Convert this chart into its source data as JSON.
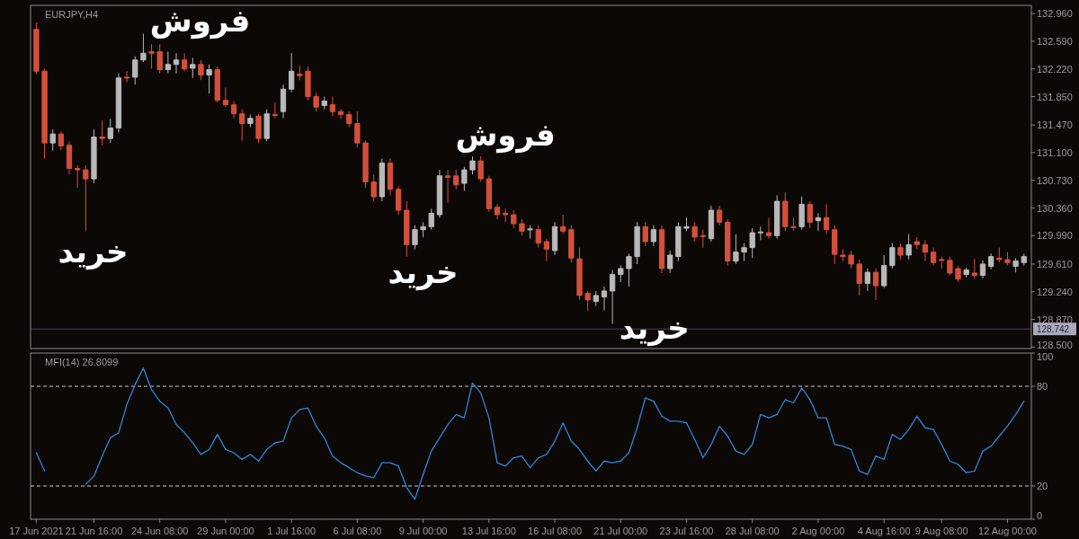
{
  "chart_data": [
    {
      "type": "candlestick",
      "title": "EURJPY,H4",
      "categories": [
        null,
        null,
        null,
        null,
        null,
        null,
        null,
        null,
        null,
        null,
        null,
        null,
        null,
        null,
        null,
        null,
        null,
        null,
        null,
        null,
        null,
        null,
        null,
        null,
        null,
        null,
        null,
        null,
        null,
        null,
        null,
        null,
        null,
        null,
        null,
        null,
        null,
        null,
        null,
        null,
        null,
        null,
        null,
        null,
        null,
        null,
        null,
        null,
        null,
        null,
        null,
        null,
        null,
        null,
        null,
        null,
        null,
        null,
        null,
        null,
        null,
        null,
        null,
        null,
        null,
        null,
        null,
        null,
        null,
        null,
        null,
        null,
        null,
        null,
        null,
        null,
        null,
        null,
        null,
        null,
        null,
        null,
        null,
        null,
        null,
        null,
        null,
        null,
        null,
        null,
        null,
        null,
        null,
        null,
        null,
        null,
        null,
        null,
        null,
        null,
        null,
        null,
        null,
        null,
        null,
        null,
        null,
        null,
        null,
        null,
        null,
        null,
        null,
        null,
        null,
        null,
        null,
        null,
        null,
        null,
        null
      ],
      "ohlc": [
        [
          132.75,
          132.84,
          132.15,
          132.19
        ],
        [
          132.19,
          132.22,
          131.02,
          131.23
        ],
        [
          131.23,
          131.41,
          131.13,
          131.35
        ],
        [
          131.35,
          131.38,
          131.13,
          131.19
        ],
        [
          131.2,
          131.25,
          130.81,
          130.89
        ],
        [
          130.89,
          130.93,
          130.63,
          130.87
        ],
        [
          130.87,
          130.93,
          130.05,
          130.75
        ],
        [
          130.75,
          131.41,
          130.69,
          131.31
        ],
        [
          131.31,
          131.53,
          131.2,
          131.29
        ],
        [
          131.29,
          131.55,
          131.23,
          131.43
        ],
        [
          131.43,
          132.16,
          131.37,
          132.1
        ],
        [
          132.11,
          132.19,
          132.04,
          132.1
        ],
        [
          132.11,
          132.39,
          132.01,
          132.34
        ],
        [
          132.34,
          132.69,
          132.31,
          132.43
        ],
        [
          132.45,
          132.55,
          132.22,
          132.43
        ],
        [
          132.45,
          132.55,
          132.16,
          132.21
        ],
        [
          132.21,
          132.45,
          132.16,
          132.28
        ],
        [
          132.28,
          132.43,
          132.16,
          132.34
        ],
        [
          132.34,
          132.43,
          132.19,
          132.22
        ],
        [
          132.23,
          132.37,
          132.1,
          132.28
        ],
        [
          132.28,
          132.34,
          132.07,
          132.14
        ],
        [
          132.14,
          132.28,
          131.89,
          132.21
        ],
        [
          132.21,
          132.25,
          131.77,
          131.8
        ],
        [
          131.8,
          131.97,
          131.71,
          131.74
        ],
        [
          131.74,
          131.79,
          131.56,
          131.62
        ],
        [
          131.62,
          131.68,
          131.26,
          131.49
        ],
        [
          131.49,
          131.61,
          131.44,
          131.56
        ],
        [
          131.59,
          131.62,
          131.23,
          131.29
        ],
        [
          131.29,
          131.68,
          131.25,
          131.62
        ],
        [
          131.61,
          131.77,
          131.56,
          131.6
        ],
        [
          131.65,
          132.01,
          131.56,
          131.95
        ],
        [
          131.95,
          132.43,
          131.91,
          132.19
        ],
        [
          132.15,
          132.26,
          132.07,
          132.13
        ],
        [
          132.19,
          132.25,
          131.8,
          131.85
        ],
        [
          131.85,
          131.9,
          131.65,
          131.71
        ],
        [
          131.73,
          131.85,
          131.68,
          131.79
        ],
        [
          131.74,
          131.85,
          131.59,
          131.65
        ],
        [
          131.65,
          131.68,
          131.55,
          131.61
        ],
        [
          131.61,
          131.65,
          131.44,
          131.49
        ],
        [
          131.49,
          131.65,
          131.17,
          131.23
        ],
        [
          131.23,
          131.26,
          130.63,
          130.71
        ],
        [
          130.71,
          130.81,
          130.45,
          130.51
        ],
        [
          130.51,
          131.02,
          130.45,
          130.96
        ],
        [
          130.96,
          131.02,
          130.53,
          130.61
        ],
        [
          130.61,
          130.65,
          130.27,
          130.33
        ],
        [
          130.33,
          130.45,
          129.71,
          129.87
        ],
        [
          129.87,
          130.13,
          129.81,
          130.07
        ],
        [
          130.07,
          130.17,
          129.97,
          130.11
        ],
        [
          130.11,
          130.35,
          130.07,
          130.29
        ],
        [
          130.27,
          130.87,
          130.23,
          130.79
        ],
        [
          130.79,
          130.87,
          130.43,
          130.77
        ],
        [
          130.79,
          130.87,
          130.61,
          130.67
        ],
        [
          130.69,
          130.91,
          130.59,
          130.87
        ],
        [
          130.87,
          131.05,
          130.81,
          130.99
        ],
        [
          130.99,
          131.05,
          130.71,
          130.75
        ],
        [
          130.75,
          130.79,
          130.31,
          130.35
        ],
        [
          130.37,
          130.41,
          130.21,
          130.27
        ],
        [
          130.29,
          130.35,
          130.17,
          130.27
        ],
        [
          130.27,
          130.33,
          130.09,
          130.15
        ],
        [
          130.15,
          130.21,
          129.99,
          130.05
        ],
        [
          130.07,
          130.13,
          129.95,
          130.08
        ],
        [
          130.07,
          130.13,
          129.83,
          129.89
        ],
        [
          129.91,
          129.95,
          129.65,
          129.81
        ],
        [
          129.79,
          130.17,
          129.73,
          130.11
        ],
        [
          130.11,
          130.27,
          130.01,
          130.05
        ],
        [
          130.07,
          130.13,
          129.63,
          129.69
        ],
        [
          129.68,
          129.83,
          129.13,
          129.19
        ],
        [
          129.22,
          129.25,
          128.98,
          129.13
        ],
        [
          129.11,
          129.25,
          129.05,
          129.19
        ],
        [
          129.17,
          129.31,
          128.99,
          129.25
        ],
        [
          129.25,
          129.53,
          128.81,
          129.47
        ],
        [
          129.47,
          129.59,
          129.37,
          129.55
        ],
        [
          129.55,
          129.75,
          129.31,
          129.71
        ],
        [
          129.71,
          130.17,
          129.61,
          130.11
        ],
        [
          130.11,
          130.17,
          129.85,
          129.91
        ],
        [
          129.91,
          130.13,
          129.85,
          130.07
        ],
        [
          130.07,
          130.13,
          129.49,
          129.55
        ],
        [
          129.55,
          129.79,
          129.49,
          129.73
        ],
        [
          129.71,
          130.17,
          129.65,
          130.11
        ],
        [
          130.09,
          130.23,
          130.05,
          130.11
        ],
        [
          130.11,
          130.17,
          129.91,
          129.97
        ],
        [
          129.99,
          130.07,
          129.83,
          129.98
        ],
        [
          129.95,
          130.39,
          129.91,
          130.33
        ],
        [
          130.33,
          130.39,
          130.13,
          130.17
        ],
        [
          130.17,
          130.21,
          129.59,
          129.65
        ],
        [
          129.65,
          130.01,
          129.61,
          129.77
        ],
        [
          129.77,
          129.89,
          129.65,
          129.83
        ],
        [
          129.83,
          130.09,
          129.69,
          130.03
        ],
        [
          130.03,
          130.11,
          129.93,
          130.04
        ],
        [
          130.03,
          130.23,
          129.95,
          129.99
        ],
        [
          129.99,
          130.53,
          129.95,
          130.45
        ],
        [
          130.45,
          130.57,
          130.05,
          130.11
        ],
        [
          130.11,
          130.23,
          130.05,
          130.1
        ],
        [
          130.11,
          130.51,
          130.07,
          130.41
        ],
        [
          130.41,
          130.45,
          130.09,
          130.17
        ],
        [
          130.19,
          130.29,
          130.05,
          130.23
        ],
        [
          130.23,
          130.41,
          130.01,
          130.07
        ],
        [
          130.07,
          130.13,
          129.61,
          129.74
        ],
        [
          129.73,
          129.81,
          129.65,
          129.71
        ],
        [
          129.73,
          129.79,
          129.55,
          129.61
        ],
        [
          129.61,
          129.67,
          129.19,
          129.35
        ],
        [
          129.35,
          129.55,
          129.25,
          129.5
        ],
        [
          129.5,
          129.55,
          129.13,
          129.32
        ],
        [
          129.32,
          129.73,
          129.29,
          129.59
        ],
        [
          129.59,
          129.89,
          129.55,
          129.83
        ],
        [
          129.83,
          129.89,
          129.67,
          129.73
        ],
        [
          129.73,
          130.01,
          129.67,
          129.87
        ],
        [
          129.91,
          129.97,
          129.81,
          129.87
        ],
        [
          129.87,
          129.93,
          129.65,
          129.77
        ],
        [
          129.77,
          129.83,
          129.59,
          129.63
        ],
        [
          129.67,
          129.71,
          129.55,
          129.66
        ],
        [
          129.66,
          129.71,
          129.46,
          129.49
        ],
        [
          129.55,
          129.59,
          129.37,
          129.41
        ],
        [
          129.47,
          129.56,
          129.43,
          129.53
        ],
        [
          129.49,
          129.68,
          129.41,
          129.46
        ],
        [
          129.46,
          129.66,
          129.42,
          129.61
        ],
        [
          129.58,
          129.75,
          129.54,
          129.71
        ],
        [
          129.69,
          129.83,
          129.63,
          129.67
        ],
        [
          129.67,
          129.77,
          129.59,
          129.63
        ],
        [
          129.58,
          129.69,
          129.5,
          129.65
        ],
        [
          129.63,
          129.75,
          129.59,
          129.71
        ]
      ],
      "colors": [
        "#d4503c",
        "#d4503c",
        "#b9b9b9",
        "#d4503c",
        "#d4503c",
        "#d4503c",
        "#d4503c",
        "#b9b9b9",
        "#d4503c",
        "#b9b9b9",
        "#b9b9b9",
        "#d4503c",
        "#b9b9b9",
        "#b9b9b9",
        "#d4503c",
        "#d4503c",
        "#b9b9b9",
        "#b9b9b9",
        "#d4503c",
        "#b9b9b9",
        "#d4503c",
        "#b9b9b9",
        "#d4503c",
        "#d4503c",
        "#d4503c",
        "#d4503c",
        "#b9b9b9",
        "#d4503c",
        "#b9b9b9",
        "#d4503c",
        "#b9b9b9",
        "#b9b9b9",
        "#d4503c",
        "#d4503c",
        "#d4503c",
        "#b9b9b9",
        "#d4503c",
        "#d4503c",
        "#d4503c",
        "#d4503c",
        "#d4503c",
        "#d4503c",
        "#b9b9b9",
        "#d4503c",
        "#d4503c",
        "#d4503c",
        "#b9b9b9",
        "#b9b9b9",
        "#b9b9b9",
        "#b9b9b9",
        "#d4503c",
        "#d4503c",
        "#b9b9b9",
        "#b9b9b9",
        "#d4503c",
        "#d4503c",
        "#d4503c",
        "#d4503c",
        "#d4503c",
        "#d4503c",
        "#b9b9b9",
        "#d4503c",
        "#d4503c",
        "#b9b9b9",
        "#d4503c",
        "#d4503c",
        "#d4503c",
        "#d4503c",
        "#b9b9b9",
        "#b9b9b9",
        "#b9b9b9",
        "#b9b9b9",
        "#b9b9b9",
        "#b9b9b9",
        "#d4503c",
        "#b9b9b9",
        "#d4503c",
        "#b9b9b9",
        "#b9b9b9",
        "#b9b9b9",
        "#d4503c",
        "#d4503c",
        "#b9b9b9",
        "#d4503c",
        "#d4503c",
        "#b9b9b9",
        "#b9b9b9",
        "#b9b9b9",
        "#b9b9b9",
        "#d4503c",
        "#b9b9b9",
        "#d4503c",
        "#d4503c",
        "#b9b9b9",
        "#d4503c",
        "#b9b9b9",
        "#d4503c",
        "#d4503c",
        "#d4503c",
        "#d4503c",
        "#d4503c",
        "#b9b9b9",
        "#d4503c",
        "#b9b9b9",
        "#b9b9b9",
        "#d4503c",
        "#b9b9b9",
        "#d4503c",
        "#d4503c",
        "#d4503c",
        "#d4503c",
        "#d4503c",
        "#d4503c",
        "#b9b9b9",
        "#d4503c",
        "#b9b9b9",
        "#b9b9b9",
        "#d4503c",
        "#d4503c",
        "#b9b9b9",
        "#b9b9b9"
      ],
      "ylim": [
        128.48,
        133.07
      ],
      "yticks": [
        {
          "value": 132.96,
          "label": "132.960"
        },
        {
          "value": 132.59,
          "label": "132.590"
        },
        {
          "value": 132.22,
          "label": "132.220"
        },
        {
          "value": 131.85,
          "label": "131.850"
        },
        {
          "value": 131.47,
          "label": "131.470"
        },
        {
          "value": 131.1,
          "label": "131.100"
        },
        {
          "value": 130.73,
          "label": "130.730"
        },
        {
          "value": 130.36,
          "label": "130.360"
        },
        {
          "value": 129.99,
          "label": "129.990"
        },
        {
          "value": 129.61,
          "label": "129.610"
        },
        {
          "value": 129.24,
          "label": "129.240"
        },
        {
          "value": 128.87,
          "label": "128.870"
        },
        {
          "value": 128.5,
          "label": "128.500"
        }
      ],
      "ref_lines": [
        {
          "axis": "y",
          "value": 128.742,
          "label": "128.742",
          "color": "#44445a"
        }
      ],
      "annotations": [
        "فروش",
        "خرید",
        "فروش",
        "خرید",
        "خرید"
      ]
    },
    {
      "type": "line",
      "title": "MFI(14) 26.8099",
      "categories": [
        "17 Jun 2021",
        null,
        null,
        null,
        null,
        null,
        null,
        "21 Jun 16:00",
        null,
        null,
        null,
        null,
        null,
        null,
        null,
        "24 Jun 08:00",
        null,
        null,
        null,
        null,
        null,
        null,
        null,
        "29 Jun 00:00",
        null,
        null,
        null,
        null,
        null,
        null,
        null,
        "1 Jul 16:00",
        null,
        null,
        null,
        null,
        null,
        null,
        null,
        "6 Jul 08:00",
        null,
        null,
        null,
        null,
        null,
        null,
        null,
        "9 Jul 00:00",
        null,
        null,
        null,
        null,
        null,
        null,
        null,
        "13 Jul 16:00",
        null,
        null,
        null,
        null,
        null,
        null,
        null,
        "16 Jul 08:00",
        null,
        null,
        null,
        null,
        null,
        null,
        null,
        "21 Jul 00:00",
        null,
        null,
        null,
        null,
        null,
        null,
        null,
        "23 Jul 16:00",
        null,
        null,
        null,
        null,
        null,
        null,
        null,
        "28 Jul 08:00",
        null,
        null,
        null,
        null,
        null,
        null,
        null,
        "2 Aug 00:00",
        null,
        null,
        null,
        null,
        null,
        null,
        null,
        "4 Aug 16:00",
        null,
        null,
        null,
        null,
        null,
        null,
        "9 Aug 08:00",
        null,
        null,
        null,
        null,
        null,
        null,
        null,
        "12 Aug 00:00",
        null,
        null
      ],
      "series": [
        {
          "color": "#2f86d8",
          "values": [
            40,
            29,
            null,
            null,
            null,
            null,
            21,
            26,
            38,
            49,
            52,
            69,
            81,
            91,
            78,
            71,
            67,
            57,
            52,
            46,
            39,
            42,
            51,
            42,
            40,
            36,
            39,
            35,
            42,
            46,
            47,
            61,
            66,
            67,
            56,
            49,
            38,
            34,
            31,
            28,
            26,
            25,
            34,
            34,
            32,
            19,
            12,
            27,
            41,
            49,
            57,
            63,
            61,
            82,
            76,
            61,
            34,
            32,
            37,
            38,
            31,
            37,
            39,
            47,
            58,
            47,
            42,
            35,
            29,
            35,
            34,
            35,
            40,
            55,
            73,
            71,
            62,
            59,
            59,
            58,
            48,
            37,
            45,
            56,
            50,
            41,
            39,
            45,
            63,
            61,
            63,
            72,
            70,
            79,
            72,
            61,
            61,
            45,
            44,
            42,
            29,
            27,
            38,
            36,
            51,
            48,
            54,
            62,
            55,
            54,
            45,
            35,
            33,
            28,
            29,
            41,
            44,
            50,
            56,
            63,
            71
          ]
        }
      ],
      "ylim": [
        0,
        100
      ],
      "yticks": [
        0,
        20,
        80,
        100
      ],
      "ref_lines": [
        {
          "axis": "y",
          "value": 80,
          "color": "#c8c8c8",
          "line_style": "dashed"
        },
        {
          "axis": "y",
          "value": 20,
          "color": "#c8c8c8",
          "line_style": "dashed"
        }
      ]
    }
  ]
}
